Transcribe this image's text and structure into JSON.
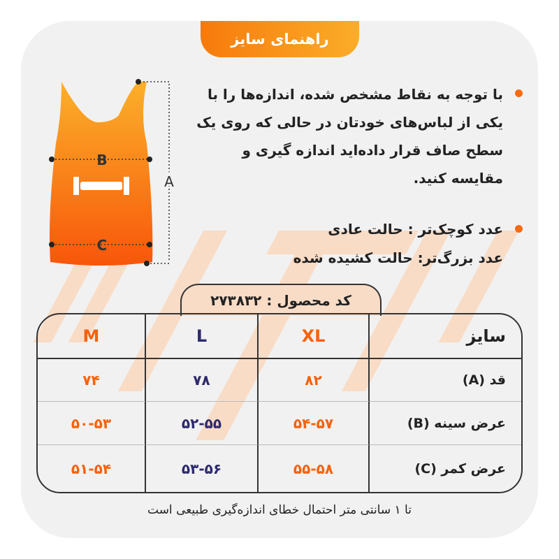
{
  "header": {
    "title": "راهنمای سایز"
  },
  "instructions": [
    "با توجه به نقاط مشخص شده، اندازه‌ها را با یکی از لباس‌های خودتان در حالی که روی یک سطح صاف قرار داده‌اید اندازه گیری و مقایسه کنید.",
    "عدد کوچک‌تر : حالت عادی",
    "عدد بزرگ‌تر: حالت کشیده شده"
  ],
  "diagram": {
    "labels": {
      "a": "A",
      "b": "B",
      "c": "C"
    }
  },
  "product_code": "کد محصول :  ۲۷۳۸۳۲",
  "table": {
    "header": [
      "M",
      "L",
      "XL",
      "سایز"
    ],
    "rows": [
      [
        "۷۴",
        "۷۸",
        "۸۲",
        "قد (A)"
      ],
      [
        "۵۰-۵۳",
        "۵۲-۵۵",
        "۵۴-۵۷",
        "عرض سینه (B)"
      ],
      [
        "۵۱-۵۴",
        "۵۳-۵۶",
        "۵۵-۵۸",
        "عرض کمر (C)"
      ]
    ]
  },
  "footer": "تا ۱ سانتی متر احتمال خطای اندازه‌گیری طبیعی است",
  "colors": {
    "accent": "#f5620c",
    "navy": "#2d2a6e",
    "background": "#f1f1f1"
  }
}
